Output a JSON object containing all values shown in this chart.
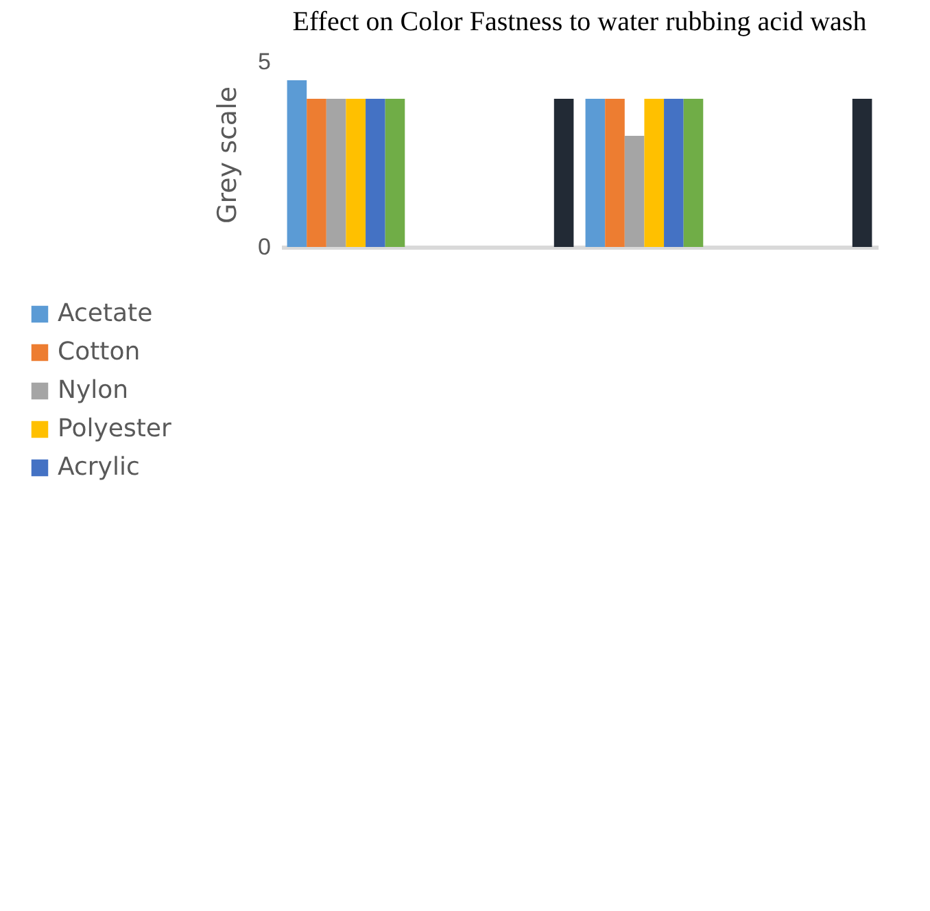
{
  "chart_data": {
    "type": "bar",
    "title": "Effect on Color Fastness to water rubbing acid wash",
    "ylabel": "Grey scale",
    "categories": [
      null,
      null,
      null,
      null
    ],
    "series": [
      {
        "name": "Acetate",
        "color": "#5b9bd5",
        "values": [
          4.5,
          null,
          4,
          null
        ]
      },
      {
        "name": "Cotton",
        "color": "#ed7d31",
        "values": [
          4,
          null,
          4,
          null
        ]
      },
      {
        "name": "Nylon",
        "color": "#a5a5a5",
        "values": [
          4,
          null,
          3,
          null
        ]
      },
      {
        "name": "Polyester",
        "color": "#ffc000",
        "values": [
          4,
          null,
          4,
          null
        ]
      },
      {
        "name": "Acrylic",
        "color": "#4472c4",
        "values": [
          4,
          null,
          4,
          null
        ]
      },
      {
        "color": "#70ad47",
        "values": [
          4,
          null,
          4,
          null
        ]
      },
      {
        "color": "#222a35",
        "values": [
          null,
          4,
          null,
          4
        ]
      }
    ],
    "ylim": [
      0,
      5
    ],
    "yticks": [
      0,
      5
    ],
    "tick_labels": "y",
    "grid": false,
    "legend": "left"
  }
}
